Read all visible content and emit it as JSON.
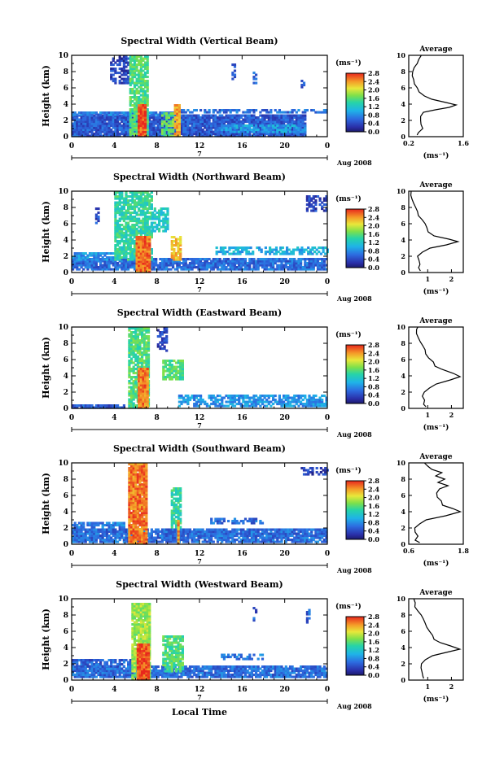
{
  "figure": {
    "xlabel": "Local Time",
    "date_label": "Aug 2008",
    "day_label": "7"
  },
  "chart_data": [
    {
      "type": "heatmap",
      "title": "Spectral Width (Vertical Beam)",
      "ylabel": "Height (km)",
      "xlim": [
        0,
        24
      ],
      "ylim": [
        0,
        10
      ],
      "x_ticks": [
        "0",
        "4",
        "8",
        "12",
        "16",
        "20",
        "0"
      ],
      "y_ticks": [
        "0",
        "2",
        "4",
        "6",
        "8",
        "10"
      ],
      "colorbar": {
        "unit": "(ms⁻¹)",
        "ticks": [
          "0.0",
          "0.4",
          "0.8",
          "1.2",
          "1.6",
          "2.0",
          "2.4",
          "2.8"
        ]
      },
      "profile": {
        "title": "Average",
        "xlabel": "(ms⁻¹)",
        "x_ticks": [
          "0.2",
          "1.6"
        ],
        "xlim": [
          0.2,
          1.6
        ],
        "y_ticks": [
          "0",
          "2",
          "4",
          "6",
          "8",
          "10"
        ],
        "heights": [
          0.2,
          0.5,
          1.0,
          1.5,
          2.0,
          2.5,
          3.0,
          3.3,
          3.6,
          3.9,
          4.2,
          4.6,
          5.0,
          5.5,
          6.0,
          6.5,
          7.0,
          7.5,
          8.0,
          8.5,
          9.0,
          9.5,
          10.0
        ],
        "values": [
          0.4,
          0.45,
          0.55,
          0.5,
          0.48,
          0.52,
          0.6,
          0.9,
          1.25,
          1.4,
          1.15,
          0.8,
          0.6,
          0.45,
          0.4,
          0.35,
          0.32,
          0.3,
          0.3,
          0.35,
          0.4,
          0.45,
          0.5
        ]
      }
    },
    {
      "type": "heatmap",
      "title": "Spectral Width (Northward Beam)",
      "ylabel": "Height (km)",
      "xlim": [
        0,
        24
      ],
      "ylim": [
        0,
        10
      ],
      "x_ticks": [
        "0",
        "4",
        "8",
        "12",
        "16",
        "20",
        "0"
      ],
      "y_ticks": [
        "0",
        "2",
        "4",
        "6",
        "8",
        "10"
      ],
      "colorbar": {
        "unit": "(ms⁻¹)",
        "ticks": [
          "0.0",
          "0.4",
          "0.8",
          "1.2",
          "1.6",
          "2.0",
          "2.4",
          "2.8"
        ]
      },
      "profile": {
        "title": "Average",
        "xlabel": "(ms⁻¹)",
        "x_ticks": [
          "1",
          "2"
        ],
        "xlim": [
          0.2,
          2.5
        ],
        "y_ticks": [
          "0",
          "2",
          "4",
          "6",
          "8",
          "10"
        ],
        "heights": [
          0.2,
          0.6,
          1.0,
          1.5,
          2.0,
          2.5,
          3.0,
          3.4,
          3.8,
          4.1,
          4.5,
          5.0,
          5.5,
          6.0,
          6.5,
          7.0,
          7.5,
          8.0,
          8.5,
          9.0,
          9.5,
          10.0
        ],
        "values": [
          0.65,
          0.6,
          0.7,
          0.62,
          0.6,
          0.75,
          1.1,
          1.8,
          2.3,
          1.9,
          1.3,
          1.05,
          0.95,
          0.85,
          0.75,
          0.65,
          0.55,
          0.45,
          0.4,
          0.35,
          0.3,
          0.3
        ]
      }
    },
    {
      "type": "heatmap",
      "title": "Spectral Width (Eastward Beam)",
      "ylabel": "Height (km)",
      "xlim": [
        0,
        24
      ],
      "ylim": [
        0,
        10
      ],
      "x_ticks": [
        "0",
        "4",
        "8",
        "12",
        "16",
        "20",
        "0"
      ],
      "y_ticks": [
        "0",
        "2",
        "4",
        "6",
        "8",
        "10"
      ],
      "colorbar": {
        "unit": "(ms⁻¹)",
        "ticks": [
          "0.0",
          "0.4",
          "0.8",
          "1.2",
          "1.6",
          "2.0",
          "2.4",
          "2.8"
        ]
      },
      "profile": {
        "title": "Average",
        "xlabel": "(ms⁻¹)",
        "x_ticks": [
          "1",
          "2"
        ],
        "xlim": [
          0.2,
          2.5
        ],
        "y_ticks": [
          "0",
          "2",
          "4",
          "6",
          "8",
          "10"
        ],
        "heights": [
          0.2,
          0.5,
          1.0,
          1.5,
          2.0,
          2.5,
          3.0,
          3.5,
          3.9,
          4.3,
          4.8,
          5.2,
          5.7,
          6.2,
          6.7,
          7.2,
          7.7,
          8.2,
          8.7,
          9.2,
          9.7,
          10.0
        ],
        "values": [
          0.95,
          0.8,
          0.85,
          0.75,
          0.9,
          1.05,
          1.4,
          1.95,
          2.4,
          2.1,
          1.6,
          1.3,
          1.2,
          1.05,
          0.95,
          0.9,
          0.8,
          0.7,
          0.6,
          0.55,
          0.5,
          0.55
        ]
      }
    },
    {
      "type": "heatmap",
      "title": "Spectral Width (Southward Beam)",
      "ylabel": "Height (km)",
      "xlim": [
        0,
        24
      ],
      "ylim": [
        0,
        10
      ],
      "x_ticks": [
        "0",
        "4",
        "8",
        "12",
        "16",
        "20",
        "0"
      ],
      "y_ticks": [
        "0",
        "2",
        "4",
        "6",
        "8",
        "10"
      ],
      "colorbar": {
        "unit": "(ms⁻¹)",
        "ticks": [
          "0.0",
          "0.4",
          "0.8",
          "1.2",
          "1.6",
          "2.0",
          "2.4",
          "2.8"
        ]
      },
      "profile": {
        "title": "Average",
        "xlabel": "(ms⁻¹)",
        "x_ticks": [
          "0.6",
          "1.8"
        ],
        "xlim": [
          0.6,
          1.8
        ],
        "y_ticks": [
          "0",
          "2",
          "4",
          "6",
          "8",
          "10"
        ],
        "heights": [
          0.2,
          0.5,
          1.0,
          1.5,
          2.0,
          2.5,
          3.0,
          3.5,
          4.0,
          4.4,
          4.8,
          5.3,
          5.8,
          6.3,
          6.8,
          7.2,
          7.6,
          8.0,
          8.4,
          8.8,
          9.2,
          9.6,
          10.0
        ],
        "values": [
          0.85,
          0.75,
          0.8,
          0.72,
          0.75,
          0.85,
          1.0,
          1.4,
          1.75,
          1.55,
          1.35,
          1.3,
          1.25,
          1.2,
          1.3,
          1.45,
          1.25,
          1.4,
          1.2,
          1.35,
          1.1,
          1.0,
          0.95
        ]
      }
    },
    {
      "type": "heatmap",
      "title": "Spectral Width (Westward Beam)",
      "ylabel": "Height (km)",
      "xlim": [
        0,
        24
      ],
      "ylim": [
        0,
        10
      ],
      "x_ticks": [
        "0",
        "4",
        "8",
        "12",
        "16",
        "20",
        "0"
      ],
      "y_ticks": [
        "0",
        "2",
        "4",
        "6",
        "8",
        "10"
      ],
      "colorbar": {
        "unit": "(ms⁻¹)",
        "ticks": [
          "0.0",
          "0.4",
          "0.8",
          "1.2",
          "1.6",
          "2.0",
          "2.4",
          "2.8"
        ]
      },
      "profile": {
        "title": "Average",
        "xlabel": "(ms⁻¹)",
        "x_ticks": [
          "1",
          "2"
        ],
        "xlim": [
          0.2,
          2.5
        ],
        "y_ticks": [
          "0",
          "2",
          "4",
          "6",
          "8",
          "10"
        ],
        "heights": [
          0.2,
          0.5,
          1.0,
          1.5,
          2.0,
          2.5,
          3.0,
          3.4,
          3.8,
          4.2,
          4.6,
          5.0,
          5.5,
          6.0,
          6.5,
          7.0,
          7.5,
          8.0,
          8.5,
          9.0,
          9.5,
          10.0
        ],
        "values": [
          0.85,
          0.75,
          0.8,
          0.7,
          0.75,
          0.9,
          1.2,
          1.8,
          2.35,
          2.0,
          1.5,
          1.3,
          1.2,
          1.1,
          1.0,
          0.9,
          0.8,
          0.7,
          0.6,
          0.5,
          0.45,
          0.4
        ]
      }
    }
  ]
}
